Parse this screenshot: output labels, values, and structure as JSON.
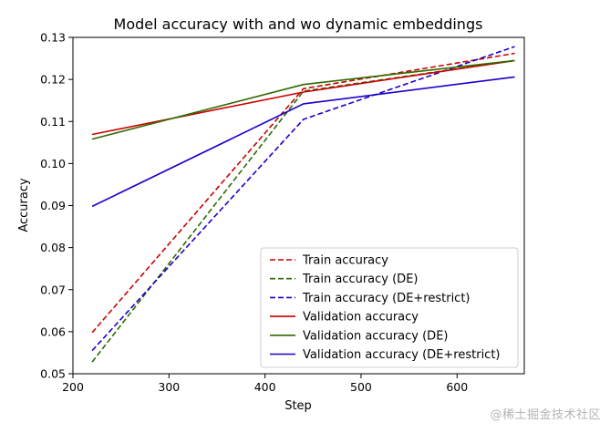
{
  "chart_data": {
    "type": "line",
    "title": "Model accuracy with and wo dynamic embeddings",
    "xlabel": "Step",
    "ylabel": "Accuracy",
    "xlim": [
      200,
      670
    ],
    "ylim": [
      0.05,
      0.13
    ],
    "xticks": [
      200,
      300,
      400,
      500,
      600
    ],
    "xtick_labels": [
      "200",
      "300",
      "400",
      "500",
      "600"
    ],
    "yticks": [
      0.05,
      0.06,
      0.07,
      0.08,
      0.09,
      0.1,
      0.11,
      0.12,
      0.13
    ],
    "ytick_labels": [
      "0.05",
      "0.06",
      "0.07",
      "0.08",
      "0.09",
      "0.10",
      "0.11",
      "0.12",
      "0.13"
    ],
    "grid": false,
    "legend_position": "lower-right",
    "x": [
      220,
      440,
      660
    ],
    "series": [
      {
        "name": "Train accuracy",
        "values": [
          0.0598,
          0.1178,
          0.1262
        ],
        "color": "#cc0000",
        "dashed": true
      },
      {
        "name": "Train accuracy (DE)",
        "values": [
          0.0528,
          0.1172,
          0.1245
        ],
        "color": "#2d6a00",
        "dashed": true
      },
      {
        "name": "Train accuracy (DE+restrict)",
        "values": [
          0.0555,
          0.1105,
          0.1278
        ],
        "color": "#1a00cc",
        "dashed": true
      },
      {
        "name": "Validation accuracy",
        "values": [
          0.1069,
          0.117,
          0.1245
        ],
        "color": "#cc0000",
        "dashed": false
      },
      {
        "name": "Validation accuracy (DE)",
        "values": [
          0.1058,
          0.1188,
          0.1245
        ],
        "color": "#2d6a00",
        "dashed": false
      },
      {
        "name": "Validation accuracy (DE+restrict)",
        "values": [
          0.0898,
          0.1142,
          0.1206
        ],
        "color": "#1a00cc",
        "dashed": false
      }
    ]
  },
  "watermark": "@稀土掘金技术社区"
}
